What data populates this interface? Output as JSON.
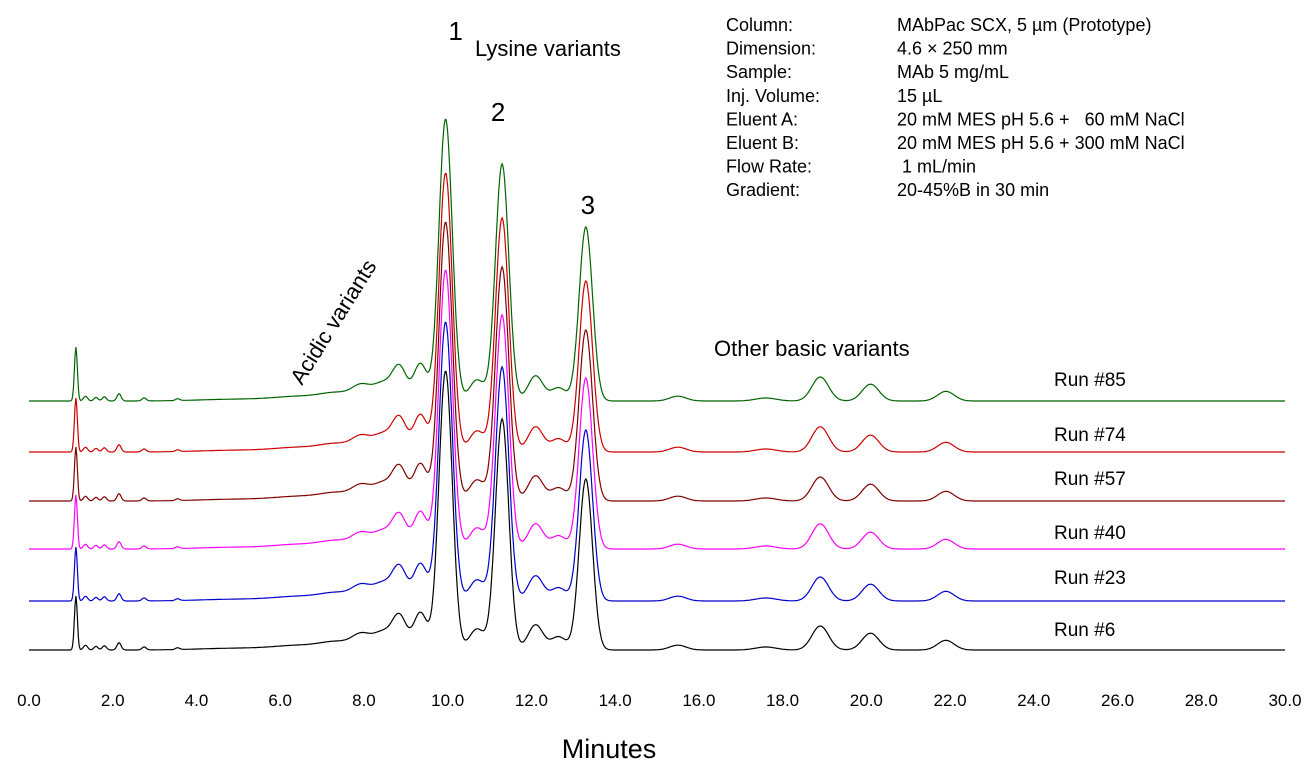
{
  "chart_data": {
    "type": "line",
    "xlabel": "Minutes",
    "ylabel": "",
    "xlim": [
      0,
      30
    ],
    "x_ticks": [
      "0.0",
      "2.0",
      "4.0",
      "6.0",
      "8.0",
      "10.0",
      "12.0",
      "14.0",
      "16.0",
      "18.0",
      "20.0",
      "22.0",
      "24.0",
      "26.0",
      "28.0",
      "30.0"
    ],
    "grid": false,
    "legend": "none",
    "series": [
      {
        "name": "Run #85",
        "color": "#006400",
        "peaks": [
          [
            9.95,
            470
          ],
          [
            11.3,
            395
          ],
          [
            13.3,
            290
          ],
          [
            18.9,
            40
          ],
          [
            20.1,
            28
          ],
          [
            21.9,
            16
          ]
        ]
      },
      {
        "name": "Run #74",
        "color": "#cc0000",
        "peaks": [
          [
            9.95,
            465
          ],
          [
            11.3,
            390
          ],
          [
            13.3,
            285
          ],
          [
            18.9,
            42
          ],
          [
            20.1,
            28
          ],
          [
            21.9,
            16
          ]
        ]
      },
      {
        "name": "Run #57",
        "color": "#800000",
        "peaks": [
          [
            9.95,
            465
          ],
          [
            11.3,
            390
          ],
          [
            13.3,
            285
          ],
          [
            18.9,
            40
          ],
          [
            20.1,
            28
          ],
          [
            21.9,
            16
          ]
        ]
      },
      {
        "name": "Run #40",
        "color": "#ff00ff",
        "peaks": [
          [
            9.95,
            465
          ],
          [
            11.3,
            390
          ],
          [
            13.3,
            285
          ],
          [
            18.9,
            42
          ],
          [
            20.1,
            28
          ],
          [
            21.9,
            16
          ]
        ]
      },
      {
        "name": "Run #23",
        "color": "#0000cc",
        "peaks": [
          [
            9.95,
            465
          ],
          [
            11.3,
            390
          ],
          [
            13.3,
            285
          ],
          [
            18.9,
            40
          ],
          [
            20.1,
            28
          ],
          [
            21.9,
            16
          ]
        ]
      },
      {
        "name": "Run #6",
        "color": "#000000",
        "peaks": [
          [
            9.95,
            465
          ],
          [
            11.3,
            385
          ],
          [
            13.3,
            285
          ],
          [
            18.9,
            40
          ],
          [
            20.1,
            28
          ],
          [
            21.9,
            16
          ]
        ]
      }
    ],
    "peak_labels": [
      {
        "text": "1",
        "x": 10.0
      },
      {
        "text": "2",
        "x": 11.3
      },
      {
        "text": "3",
        "x": 13.3
      }
    ],
    "annotations": {
      "lysine": "Lysine variants",
      "acidic": "Acidic variants",
      "basic": "Other basic variants"
    },
    "conditions": [
      {
        "label": "Column:",
        "value": "MAbPac SCX, 5 µm (Prototype)"
      },
      {
        "label": "Dimension:",
        "value": "4.6 × 250 mm"
      },
      {
        "label": "Sample:",
        "value": "MAb 5 mg/mL"
      },
      {
        "label": "Inj. Volume:",
        "value": "15 µL"
      },
      {
        "label": "Eluent A:",
        "value": "20 mM MES pH 5.6 +   60 mM NaCl"
      },
      {
        "label": "Eluent B:",
        "value": "20 mM MES pH 5.6 + 300 mM NaCl"
      },
      {
        "label": "Flow Rate:",
        "value": " 1 mL/min"
      },
      {
        "label": "Gradient:",
        "value": "20-45%B in 30 min"
      }
    ]
  }
}
